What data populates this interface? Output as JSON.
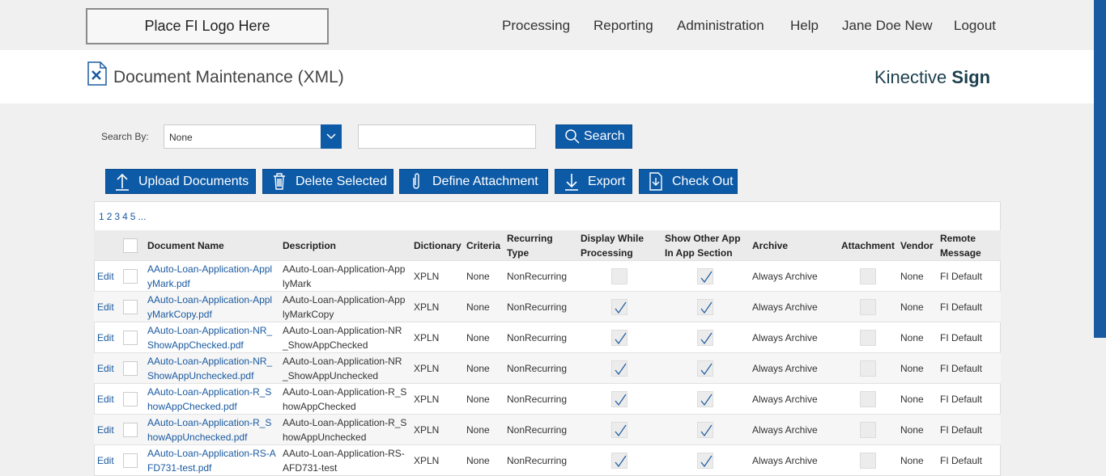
{
  "header": {
    "logo": "Place FI Logo Here",
    "nav": [
      "Processing",
      "Reporting",
      "Administration",
      "Help",
      "Jane Doe New",
      "Logout"
    ],
    "page_title": "Document Maintenance (XML)",
    "brand": {
      "light": "Kinective",
      "bold": "Sign"
    }
  },
  "search": {
    "label": "Search By:",
    "selected": "None",
    "button": "Search"
  },
  "toolbar": [
    "Upload Documents",
    "Delete Selected",
    "Define Attachment",
    "Export",
    "Check Out"
  ],
  "table": {
    "pages": [
      "1",
      "2",
      "3",
      "4",
      "5",
      "..."
    ],
    "columns": [
      "Document Name",
      "Description",
      "Dictionary",
      "Criteria",
      "Recurring Type",
      "Display While Processing",
      "Show Other App In App Section",
      "Archive",
      "Attachment",
      "Vendor",
      "Remote Message"
    ],
    "rows": [
      {
        "edit": "Edit",
        "document_name": "AAuto-Loan-Application-ApplyMark.pdf",
        "description": "AAuto-Loan-Application-ApplyMark",
        "dictionary": "XPLN",
        "criteria": "None",
        "recurring_type": "NonRecurring",
        "display_while_processing": false,
        "show_other_app": true,
        "archive": "Always Archive",
        "attachment": false,
        "vendor": "None",
        "remote_message": "FI Default"
      },
      {
        "edit": "Edit",
        "document_name": "AAuto-Loan-Application-ApplyMarkCopy.pdf",
        "description": "AAuto-Loan-Application-ApplyMarkCopy",
        "dictionary": "XPLN",
        "criteria": "None",
        "recurring_type": "NonRecurring",
        "display_while_processing": true,
        "show_other_app": true,
        "archive": "Always Archive",
        "attachment": false,
        "vendor": "None",
        "remote_message": "FI Default"
      },
      {
        "edit": "Edit",
        "document_name": "AAuto-Loan-Application-NR_ShowAppChecked.pdf",
        "description": "AAuto-Loan-Application-NR_ShowAppChecked",
        "dictionary": "XPLN",
        "criteria": "None",
        "recurring_type": "NonRecurring",
        "display_while_processing": true,
        "show_other_app": true,
        "archive": "Always Archive",
        "attachment": false,
        "vendor": "None",
        "remote_message": "FI Default"
      },
      {
        "edit": "Edit",
        "document_name": "AAuto-Loan-Application-NR_ShowAppUnchecked.pdf",
        "description": "AAuto-Loan-Application-NR_ShowAppUnchecked",
        "dictionary": "XPLN",
        "criteria": "None",
        "recurring_type": "NonRecurring",
        "display_while_processing": true,
        "show_other_app": true,
        "archive": "Always Archive",
        "attachment": false,
        "vendor": "None",
        "remote_message": "FI Default"
      },
      {
        "edit": "Edit",
        "document_name": "AAuto-Loan-Application-R_ShowAppChecked.pdf",
        "description": "AAuto-Loan-Application-R_ShowAppChecked",
        "dictionary": "XPLN",
        "criteria": "None",
        "recurring_type": "NonRecurring",
        "display_while_processing": true,
        "show_other_app": true,
        "archive": "Always Archive",
        "attachment": false,
        "vendor": "None",
        "remote_message": "FI Default"
      },
      {
        "edit": "Edit",
        "document_name": "AAuto-Loan-Application-R_ShowAppUnchecked.pdf",
        "description": "AAuto-Loan-Application-R_ShowAppUnchecked",
        "dictionary": "XPLN",
        "criteria": "None",
        "recurring_type": "NonRecurring",
        "display_while_processing": true,
        "show_other_app": true,
        "archive": "Always Archive",
        "attachment": false,
        "vendor": "None",
        "remote_message": "FI Default"
      },
      {
        "edit": "Edit",
        "document_name": "AAuto-Loan-Application-RS-AFD731-test.pdf",
        "description": "AAuto-Loan-Application-RS-AFD731-test",
        "dictionary": "XPLN",
        "criteria": "None",
        "recurring_type": "NonRecurring",
        "display_while_processing": true,
        "show_other_app": true,
        "archive": "Always Archive",
        "attachment": false,
        "vendor": "None",
        "remote_message": "FI Default"
      }
    ]
  }
}
